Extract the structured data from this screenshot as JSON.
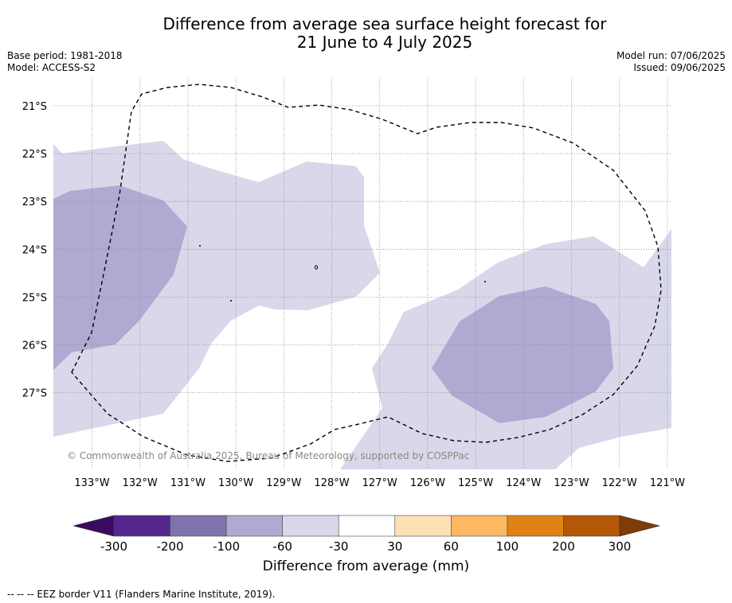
{
  "title": {
    "line1": "Difference from average sea surface height forecast for",
    "line2": "21 June to 4 July 2025"
  },
  "meta_left": {
    "base_period": "Base period: 1981-2018",
    "model": "Model: ACCESS-S2"
  },
  "meta_right": {
    "model_run": "Model run: 07/06/2025",
    "issued": "Issued: 09/06/2025"
  },
  "map": {
    "lat_labels": [
      "21°S",
      "22°S",
      "23°S",
      "24°S",
      "25°S",
      "26°S",
      "27°S"
    ],
    "lon_labels": [
      "133°W",
      "132°W",
      "131°W",
      "130°W",
      "129°W",
      "128°W",
      "127°W",
      "126°W",
      "125°W",
      "124°W",
      "123°W",
      "122°W",
      "121°W"
    ],
    "copyright": "© Commonwealth of Australia 2025, Bureau of Meteorology, supported by COSPPac",
    "colors": {
      "class_neg60_neg30": "#d8d8ea",
      "class_neg100_neg60": "#b0aad2",
      "gridline": "#888888",
      "eez_border": "#000000"
    }
  },
  "colorbar": {
    "ticks": [
      "-300",
      "-200",
      "-100",
      "-60",
      "-30",
      "30",
      "60",
      "100",
      "200",
      "300"
    ],
    "colors": [
      "#3a0b5e",
      "#54278f",
      "#7f72ad",
      "#b0aad2",
      "#d8d8ea",
      "#ffffff",
      "#fee0b6",
      "#fdb863",
      "#e08214",
      "#b35806",
      "#7f3b08"
    ],
    "label": "Difference from average (mm)"
  },
  "footer": "--  --  -- EEZ border V11 (Flanders Marine Institute, 2019)."
}
